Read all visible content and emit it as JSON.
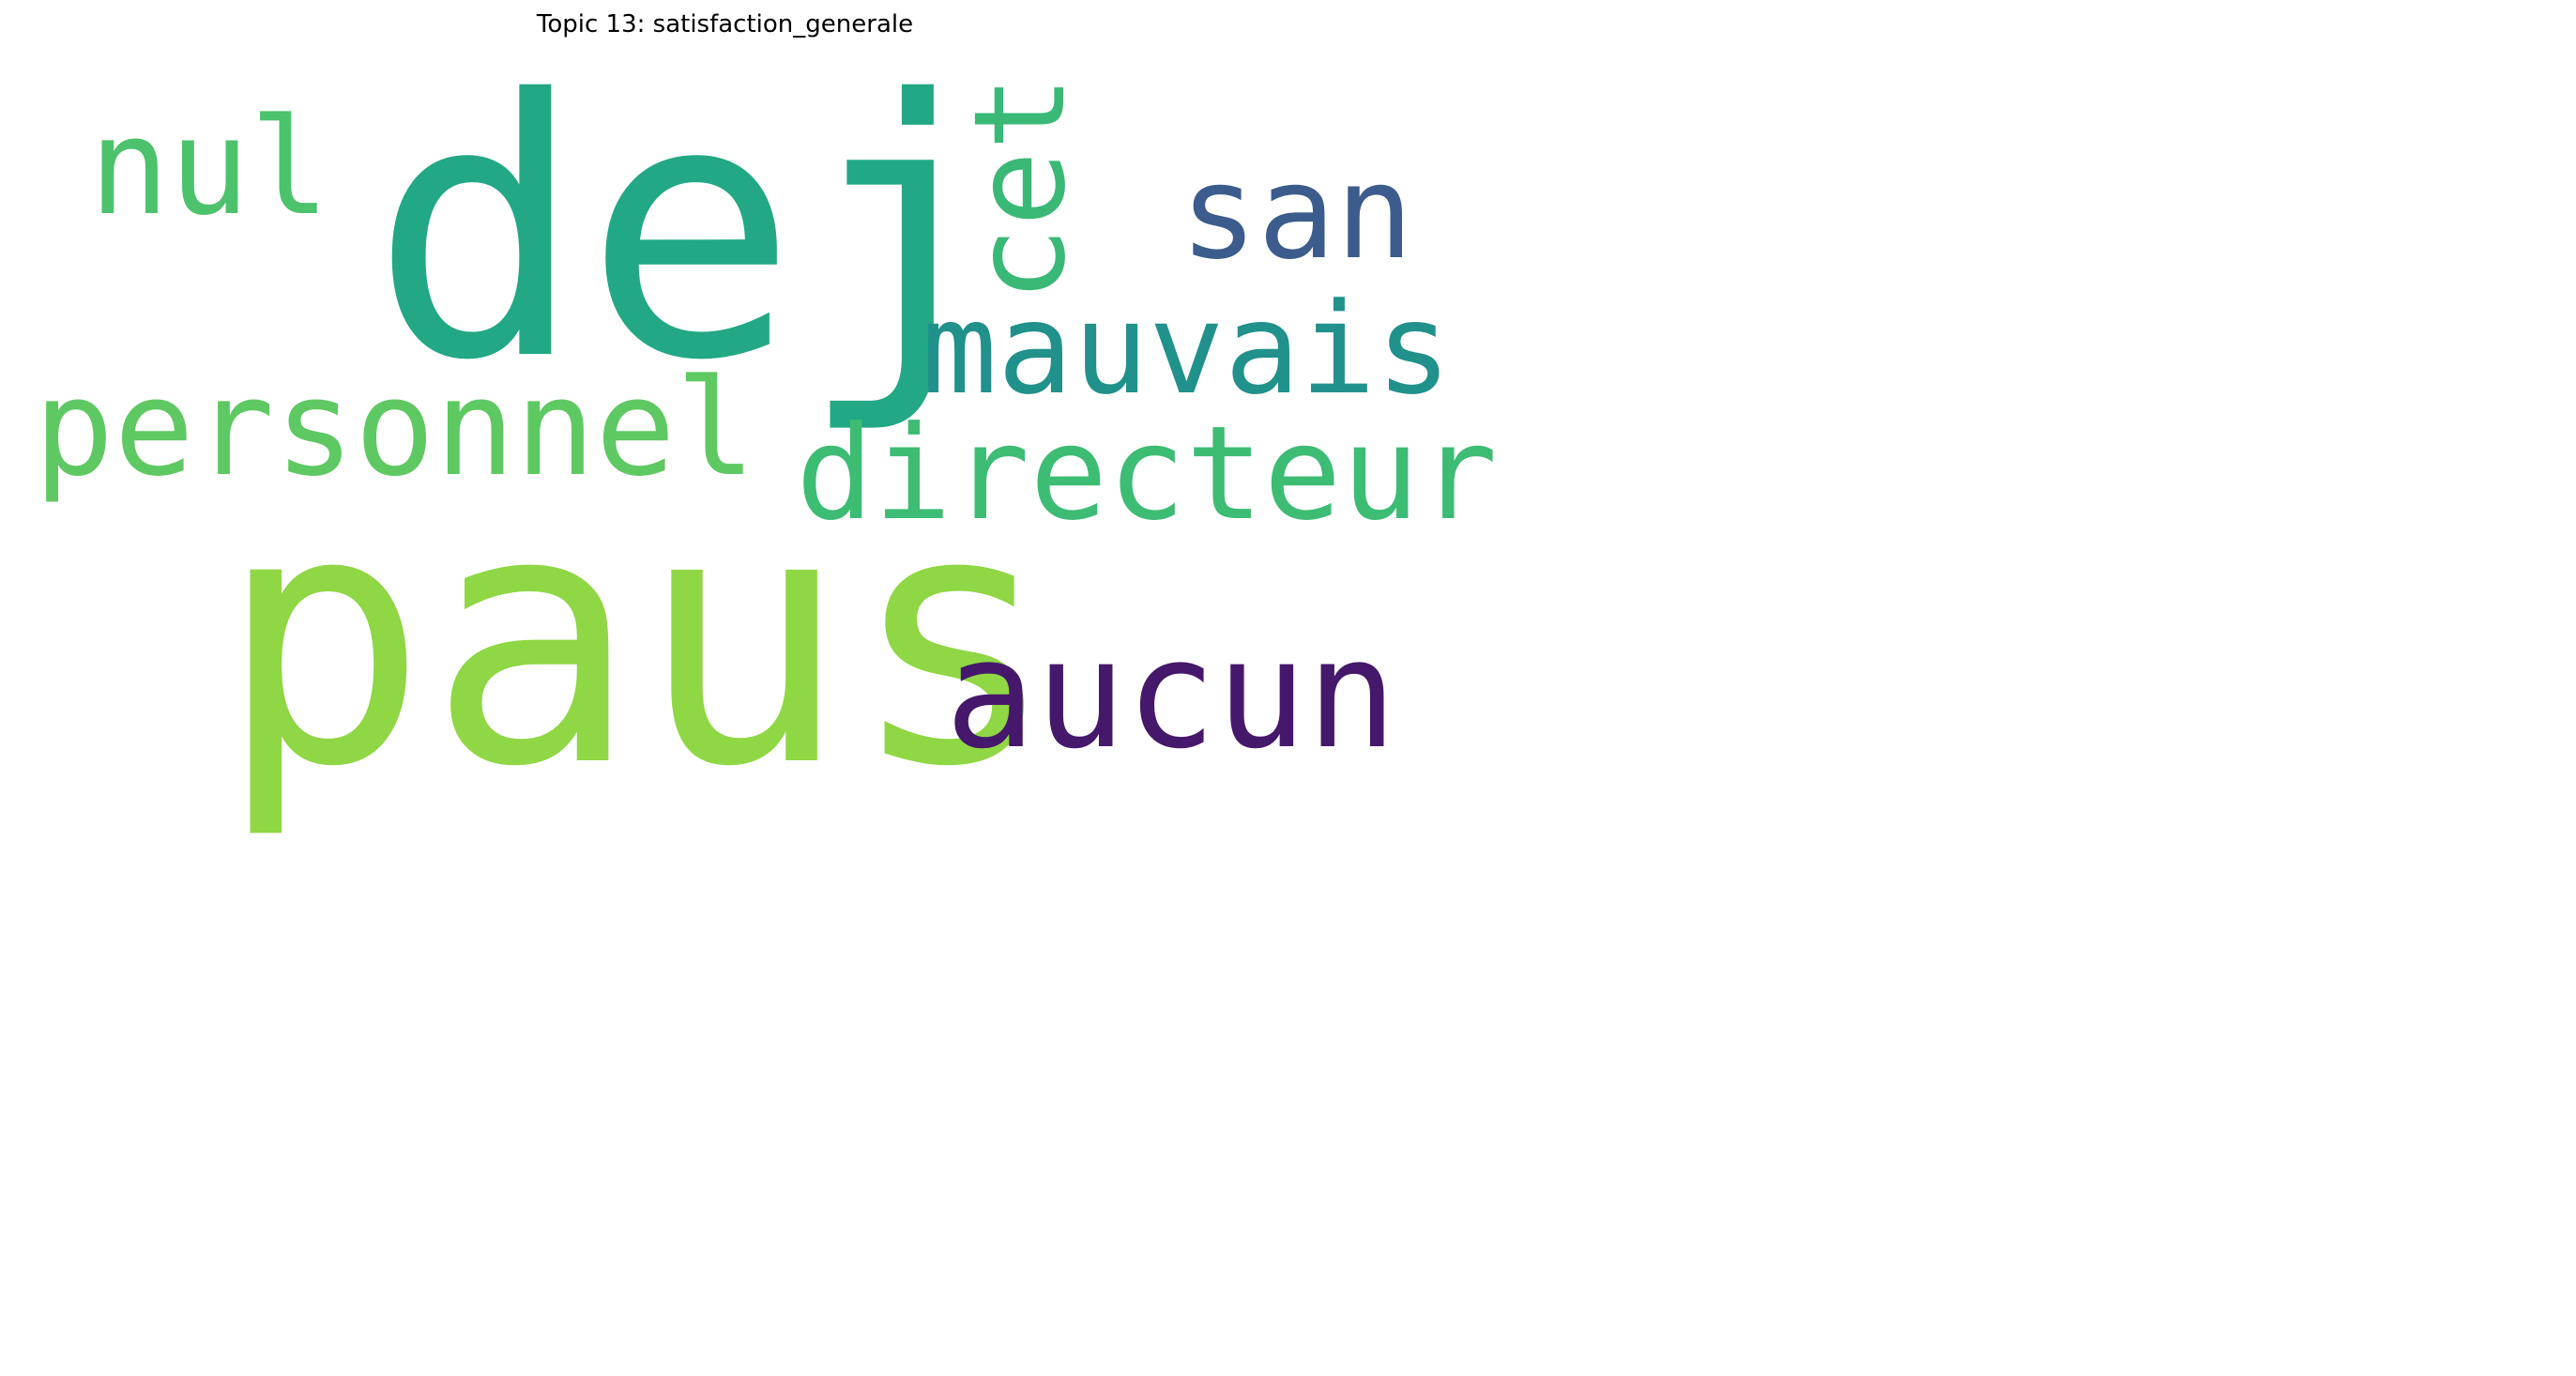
{
  "title": "Topic 13: satisfaction_generale",
  "words": [
    {
      "text": "dej",
      "color": "#22a884",
      "orientation": "horizontal"
    },
    {
      "text": "paus",
      "color": "#8fd744",
      "orientation": "horizontal"
    },
    {
      "text": "personnel",
      "color": "#5ec962",
      "orientation": "horizontal"
    },
    {
      "text": "directeur",
      "color": "#3dbc74",
      "orientation": "horizontal"
    },
    {
      "text": "mauvais",
      "color": "#21918c",
      "orientation": "horizontal"
    },
    {
      "text": "aucun",
      "color": "#45186b",
      "orientation": "horizontal"
    },
    {
      "text": "san",
      "color": "#3b5c8c",
      "orientation": "horizontal"
    },
    {
      "text": "nul",
      "color": "#4cc26c",
      "orientation": "horizontal"
    },
    {
      "text": "cet",
      "color": "#3ab976",
      "orientation": "vertical"
    }
  ]
}
